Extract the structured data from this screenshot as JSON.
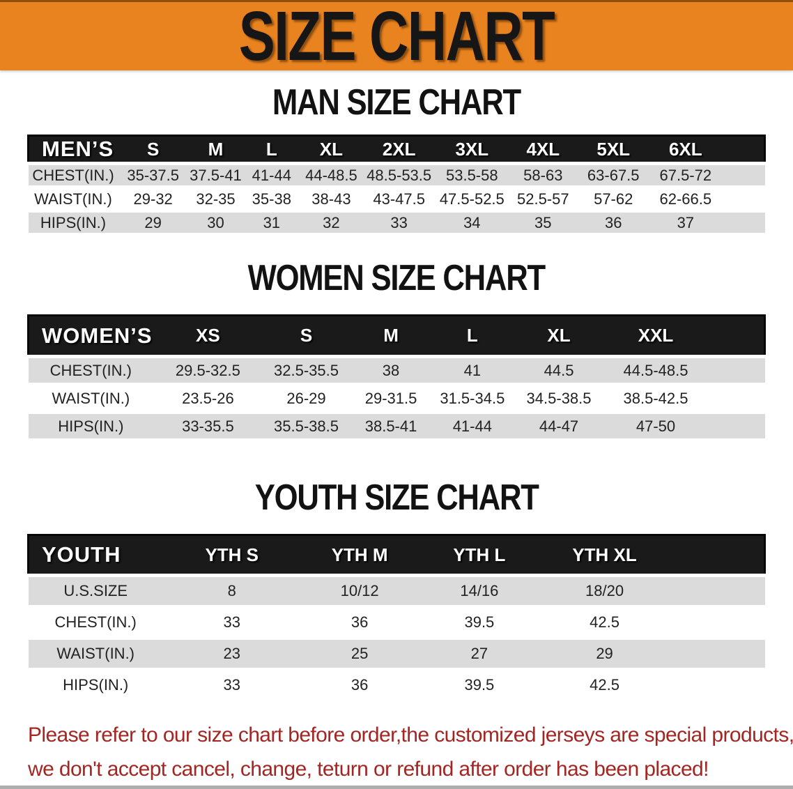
{
  "banner": {
    "title": "SIZE CHART"
  },
  "sections": [
    {
      "key": "men",
      "title": "MAN SIZE CHART",
      "header_label": "MEN’S",
      "columns": [
        "S",
        "M",
        "L",
        "XL",
        "2XL",
        "3XL",
        "4XL",
        "5XL",
        "6XL"
      ],
      "rows": [
        {
          "label": "CHEST(IN.)",
          "values": [
            "35-37.5",
            "37.5-41",
            "41-44",
            "44-48.5",
            "48.5-53.5",
            "53.5-58",
            "58-63",
            "63-67.5",
            "67.5-72"
          ]
        },
        {
          "label": "WAIST(IN.)",
          "values": [
            "29-32",
            "32-35",
            "35-38",
            "38-43",
            "43-47.5",
            "47.5-52.5",
            "52.5-57",
            "57-62",
            "62-66.5"
          ]
        },
        {
          "label": "HIPS(IN.)",
          "values": [
            "29",
            "30",
            "31",
            "32",
            "33",
            "34",
            "35",
            "36",
            "37"
          ]
        }
      ]
    },
    {
      "key": "women",
      "title": "WOMEN SIZE CHART",
      "header_label": "WOMEN’S",
      "columns": [
        "XS",
        "S",
        "M",
        "L",
        "XL",
        "XXL"
      ],
      "rows": [
        {
          "label": "CHEST(IN.)",
          "values": [
            "29.5-32.5",
            "32.5-35.5",
            "38",
            "41",
            "44.5",
            "44.5-48.5"
          ]
        },
        {
          "label": "WAIST(IN.)",
          "values": [
            "23.5-26",
            "26-29",
            "29-31.5",
            "31.5-34.5",
            "34.5-38.5",
            "38.5-42.5"
          ]
        },
        {
          "label": "HIPS(IN.)",
          "values": [
            "33-35.5",
            "35.5-38.5",
            "38.5-41",
            "41-44",
            "44-47",
            "47-50"
          ]
        }
      ]
    },
    {
      "key": "youth",
      "title": "YOUTH SIZE CHART",
      "header_label": "YOUTH",
      "columns": [
        "YTH S",
        "YTH M",
        "YTH L",
        "YTH XL"
      ],
      "rows": [
        {
          "label": "U.S.SIZE",
          "values": [
            "8",
            "10/12",
            "14/16",
            "18/20"
          ]
        },
        {
          "label": "CHEST(IN.)",
          "values": [
            "33",
            "36",
            "39.5",
            "42.5"
          ]
        },
        {
          "label": "WAIST(IN.)",
          "values": [
            "23",
            "25",
            "27",
            "29"
          ]
        },
        {
          "label": "HIPS(IN.)",
          "values": [
            "33",
            "36",
            "39.5",
            "42.5"
          ]
        }
      ]
    }
  ],
  "footer": {
    "line1": "Please refer to our size chart before order,the customized jerseys are special products,",
    "line2": "we don't accept cancel, change, teturn or refund after order has been placed!"
  },
  "colors": {
    "banner_orange": "#E8831F",
    "header_black": "#1A1A1A",
    "row_gray": "#DBDBDB",
    "footer_red": "#A32622"
  }
}
